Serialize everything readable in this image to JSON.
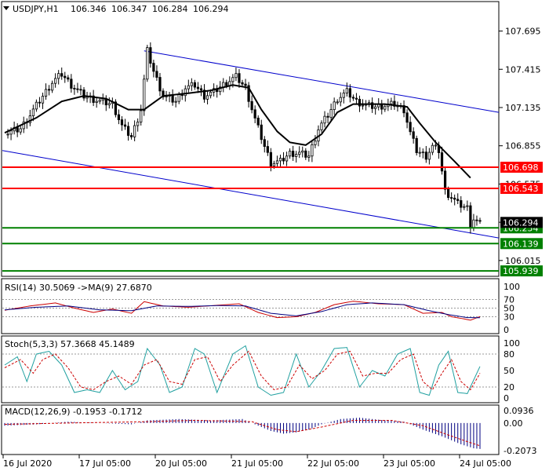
{
  "title": "USDJPY,H1",
  "ohlc": [
    "106.346",
    "106.347",
    "106.284",
    "106.294"
  ],
  "colors": {
    "frame": "#000000",
    "candle_up": "#ffffff",
    "candle_down": "#000000",
    "ma": "#000000",
    "channel": "#0000cc",
    "resistance": "#ff0000",
    "support": "#008000",
    "current_price_box": "#000000",
    "rsi_line": "#cc0000",
    "rsi_ma": "#000080",
    "stoch_main": "#20a0a0",
    "stoch_signal": "#cc0000",
    "macd_hist": "#000080",
    "macd_signal": "#cc0000"
  },
  "chart_data": [
    {
      "type": "candlestick",
      "name": "price",
      "price_axis_ticks": [
        "107.695",
        "107.415",
        "107.135",
        "106.855",
        "106.575",
        "106.295",
        "106.015"
      ],
      "ylim": [
        105.905,
        107.905
      ],
      "x_labels": [
        "16 Jul 2020",
        "17 Jul 05:00",
        "20 Jul 05:00",
        "21 Jul 05:00",
        "22 Jul 05:00",
        "23 Jul 05:00",
        "24 Jul 05:00"
      ],
      "candles_count": 150,
      "close_path_keypoints": [
        [
          0,
          106.94
        ],
        [
          5,
          106.98
        ],
        [
          10,
          107.15
        ],
        [
          15,
          107.32
        ],
        [
          18,
          107.38
        ],
        [
          21,
          107.3
        ],
        [
          25,
          107.22
        ],
        [
          30,
          107.18
        ],
        [
          34,
          107.16
        ],
        [
          37,
          107.0
        ],
        [
          40,
          106.92
        ],
        [
          43,
          107.12
        ],
        [
          45,
          107.55
        ],
        [
          47,
          107.4
        ],
        [
          50,
          107.22
        ],
        [
          54,
          107.18
        ],
        [
          57,
          107.28
        ],
        [
          60,
          107.3
        ],
        [
          63,
          107.22
        ],
        [
          66,
          107.25
        ],
        [
          70,
          107.32
        ],
        [
          73,
          107.36
        ],
        [
          76,
          107.28
        ],
        [
          79,
          107.05
        ],
        [
          82,
          106.85
        ],
        [
          84,
          106.73
        ],
        [
          87,
          106.74
        ],
        [
          90,
          106.8
        ],
        [
          93,
          106.8
        ],
        [
          96,
          106.78
        ],
        [
          99,
          106.98
        ],
        [
          102,
          107.08
        ],
        [
          105,
          107.2
        ],
        [
          108,
          107.25
        ],
        [
          111,
          107.18
        ],
        [
          114,
          107.15
        ],
        [
          117,
          107.14
        ],
        [
          120,
          107.15
        ],
        [
          123,
          107.16
        ],
        [
          126,
          107.12
        ],
        [
          128,
          106.95
        ],
        [
          130,
          106.82
        ],
        [
          133,
          106.78
        ],
        [
          135,
          106.85
        ],
        [
          137,
          106.82
        ],
        [
          139,
          106.52
        ],
        [
          141,
          106.48
        ],
        [
          143,
          106.43
        ],
        [
          146,
          106.4
        ],
        [
          147,
          106.28
        ],
        [
          148,
          106.32
        ],
        [
          150,
          106.28
        ]
      ],
      "moving_average": [
        [
          0,
          106.95
        ],
        [
          10,
          107.06
        ],
        [
          18,
          107.18
        ],
        [
          25,
          107.22
        ],
        [
          32,
          107.2
        ],
        [
          39,
          107.12
        ],
        [
          44,
          107.12
        ],
        [
          50,
          107.22
        ],
        [
          58,
          107.24
        ],
        [
          65,
          107.26
        ],
        [
          72,
          107.3
        ],
        [
          77,
          107.28
        ],
        [
          81,
          107.12
        ],
        [
          86,
          106.96
        ],
        [
          90,
          106.88
        ],
        [
          95,
          106.86
        ],
        [
          100,
          106.94
        ],
        [
          105,
          107.1
        ],
        [
          110,
          107.16
        ],
        [
          120,
          107.16
        ],
        [
          127,
          107.14
        ],
        [
          131,
          107.02
        ],
        [
          136,
          106.88
        ],
        [
          142,
          106.74
        ],
        [
          147,
          106.62
        ]
      ],
      "channel_upper": [
        [
          44,
          107.55
        ],
        [
          150,
          107.1
        ]
      ],
      "channel_lower": [
        [
          0,
          106.82
        ],
        [
          150,
          106.18
        ]
      ],
      "horizontal_levels": [
        {
          "label": "106.698",
          "value": 106.698,
          "kind": "resistance"
        },
        {
          "label": "106.543",
          "value": 106.543,
          "kind": "resistance"
        },
        {
          "label": "106.254",
          "value": 106.254,
          "kind": "support"
        },
        {
          "label": "106.139",
          "value": 106.139,
          "kind": "support"
        },
        {
          "label": "105.939",
          "value": 105.939,
          "kind": "support"
        }
      ],
      "current_price": {
        "label": "106.294",
        "value": 106.294
      }
    },
    {
      "type": "line",
      "name": "RSI",
      "header": "RSI(14) 30.5069  ->MA(9) 27.6870",
      "ylim": [
        0,
        100
      ],
      "ticks": [
        "100",
        "70",
        "50",
        "30",
        "0"
      ],
      "levels": [
        70,
        50,
        30
      ],
      "series": [
        {
          "values_keypoints": [
            [
              0,
              45
            ],
            [
              8,
              55
            ],
            [
              16,
              62
            ],
            [
              22,
              50
            ],
            [
              28,
              40
            ],
            [
              34,
              48
            ],
            [
              40,
              38
            ],
            [
              44,
              65
            ],
            [
              50,
              55
            ],
            [
              58,
              52
            ],
            [
              66,
              56
            ],
            [
              74,
              60
            ],
            [
              80,
              40
            ],
            [
              86,
              28
            ],
            [
              92,
              30
            ],
            [
              98,
              40
            ],
            [
              104,
              58
            ],
            [
              110,
              66
            ],
            [
              118,
              60
            ],
            [
              126,
              58
            ],
            [
              132,
              38
            ],
            [
              138,
              40
            ],
            [
              141,
              30
            ],
            [
              145,
              25
            ],
            [
              147,
              22
            ],
            [
              150,
              30.5
            ]
          ]
        },
        {
          "values_keypoints": [
            [
              0,
              46
            ],
            [
              10,
              52
            ],
            [
              20,
              55
            ],
            [
              30,
              46
            ],
            [
              40,
              44
            ],
            [
              48,
              55
            ],
            [
              58,
              54
            ],
            [
              68,
              56
            ],
            [
              76,
              55
            ],
            [
              84,
              38
            ],
            [
              92,
              32
            ],
            [
              100,
              42
            ],
            [
              108,
              58
            ],
            [
              116,
              62
            ],
            [
              126,
              58
            ],
            [
              134,
              44
            ],
            [
              140,
              35
            ],
            [
              146,
              28
            ],
            [
              150,
              27.7
            ]
          ]
        }
      ]
    },
    {
      "type": "line",
      "name": "Stochastic",
      "header": "Stoch(5,3,3) 57.3668 45.1489",
      "ylim": [
        0,
        100
      ],
      "ticks": [
        "100",
        "80",
        "50",
        "20",
        "0"
      ],
      "levels": [
        80,
        20
      ],
      "series": [
        {
          "values_keypoints": [
            [
              0,
              60
            ],
            [
              4,
              75
            ],
            [
              7,
              30
            ],
            [
              10,
              80
            ],
            [
              14,
              85
            ],
            [
              18,
              60
            ],
            [
              22,
              10
            ],
            [
              26,
              15
            ],
            [
              30,
              10
            ],
            [
              34,
              50
            ],
            [
              38,
              15
            ],
            [
              42,
              30
            ],
            [
              45,
              90
            ],
            [
              49,
              60
            ],
            [
              52,
              10
            ],
            [
              56,
              20
            ],
            [
              60,
              90
            ],
            [
              63,
              80
            ],
            [
              67,
              10
            ],
            [
              72,
              80
            ],
            [
              76,
              95
            ],
            [
              80,
              20
            ],
            [
              84,
              5
            ],
            [
              88,
              10
            ],
            [
              92,
              80
            ],
            [
              96,
              20
            ],
            [
              100,
              50
            ],
            [
              104,
              90
            ],
            [
              108,
              92
            ],
            [
              112,
              20
            ],
            [
              116,
              50
            ],
            [
              120,
              40
            ],
            [
              124,
              80
            ],
            [
              128,
              90
            ],
            [
              131,
              10
            ],
            [
              134,
              5
            ],
            [
              137,
              60
            ],
            [
              140,
              85
            ],
            [
              143,
              10
            ],
            [
              146,
              8
            ],
            [
              150,
              57.4
            ]
          ]
        },
        {
          "values_keypoints": [
            [
              0,
              55
            ],
            [
              5,
              70
            ],
            [
              9,
              45
            ],
            [
              12,
              70
            ],
            [
              16,
              80
            ],
            [
              20,
              55
            ],
            [
              24,
              20
            ],
            [
              28,
              15
            ],
            [
              32,
              30
            ],
            [
              36,
              40
            ],
            [
              40,
              25
            ],
            [
              44,
              60
            ],
            [
              48,
              70
            ],
            [
              52,
              30
            ],
            [
              56,
              25
            ],
            [
              60,
              70
            ],
            [
              64,
              75
            ],
            [
              68,
              30
            ],
            [
              72,
              60
            ],
            [
              77,
              85
            ],
            [
              81,
              40
            ],
            [
              85,
              15
            ],
            [
              89,
              20
            ],
            [
              93,
              60
            ],
            [
              97,
              35
            ],
            [
              101,
              50
            ],
            [
              105,
              80
            ],
            [
              109,
              85
            ],
            [
              113,
              40
            ],
            [
              117,
              45
            ],
            [
              121,
              45
            ],
            [
              125,
              70
            ],
            [
              129,
              80
            ],
            [
              132,
              30
            ],
            [
              135,
              15
            ],
            [
              138,
              45
            ],
            [
              141,
              70
            ],
            [
              144,
              30
            ],
            [
              147,
              15
            ],
            [
              150,
              45.1
            ]
          ]
        }
      ]
    },
    {
      "type": "bar",
      "name": "MACD",
      "header": "MACD(12,26,9) -0.1953 -0.1712",
      "ticks": [
        "0.0936",
        "0.00",
        "-0.2073"
      ],
      "ylim": [
        -0.2073,
        0.0936
      ],
      "histogram_keypoints": [
        [
          0,
          -0.02
        ],
        [
          10,
          -0.01
        ],
        [
          20,
          0.01
        ],
        [
          30,
          0.0
        ],
        [
          40,
          -0.01
        ],
        [
          45,
          0.02
        ],
        [
          55,
          0.03
        ],
        [
          65,
          0.02
        ],
        [
          75,
          0.03
        ],
        [
          80,
          -0.02
        ],
        [
          84,
          -0.06
        ],
        [
          88,
          -0.08
        ],
        [
          92,
          -0.07
        ],
        [
          96,
          -0.05
        ],
        [
          100,
          -0.01
        ],
        [
          106,
          0.03
        ],
        [
          112,
          0.04
        ],
        [
          120,
          0.02
        ],
        [
          126,
          0.01
        ],
        [
          132,
          -0.05
        ],
        [
          138,
          -0.1
        ],
        [
          144,
          -0.16
        ],
        [
          148,
          -0.19
        ],
        [
          150,
          -0.195
        ]
      ],
      "signal_keypoints": [
        [
          0,
          -0.01
        ],
        [
          20,
          0.0
        ],
        [
          45,
          0.01
        ],
        [
          60,
          0.02
        ],
        [
          78,
          0.01
        ],
        [
          86,
          -0.05
        ],
        [
          92,
          -0.065
        ],
        [
          100,
          -0.03
        ],
        [
          110,
          0.02
        ],
        [
          122,
          0.02
        ],
        [
          132,
          -0.02
        ],
        [
          140,
          -0.09
        ],
        [
          146,
          -0.14
        ],
        [
          150,
          -0.171
        ]
      ]
    }
  ]
}
